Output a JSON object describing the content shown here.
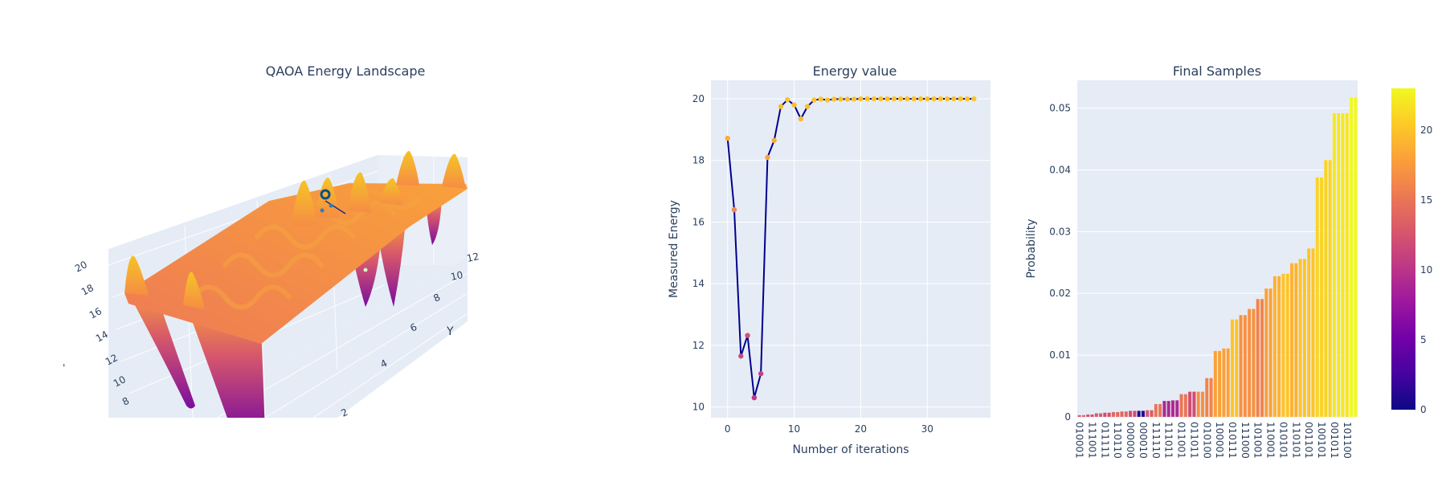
{
  "colors": {
    "plot_bg": "#e5ecf6",
    "grid": "#ffffff",
    "line": "#00008b",
    "text": "#2a3f5f",
    "colorscale": [
      "#0d0887",
      "#46039f",
      "#7201a8",
      "#9c179e",
      "#bd3786",
      "#d8576b",
      "#ed7953",
      "#fb9f3a",
      "#fdca26",
      "#f0f921"
    ]
  },
  "chart_data": [
    {
      "type": "surface",
      "title": "QAOA Energy Landscape",
      "xlabel": "",
      "ylabel": "Y",
      "zlabel": "Z",
      "z_ticks": [
        "8",
        "10",
        "12",
        "14",
        "16",
        "18",
        "20"
      ],
      "y_ticks": [
        "2",
        "4",
        "6",
        "8",
        "10",
        "12"
      ],
      "zlim": [
        6,
        22
      ],
      "colorscale": "plasma",
      "description": "Oscillatory energy surface, mostly flat around 17-19 with sharp peaks up to ~21 and deep wells down to ~6; optimization trajectory marker in blue"
    },
    {
      "type": "line",
      "title": "Energy value",
      "xlabel": "Number of iterations",
      "ylabel": "Measured Energy",
      "x_ticks": [
        0,
        10,
        20,
        30
      ],
      "y_ticks": [
        10,
        12,
        14,
        16,
        18,
        20
      ],
      "xlim": [
        -2.5,
        39.5
      ],
      "ylim": [
        9.65,
        20.6
      ],
      "grid": true,
      "marker_colorscale": "plasma",
      "x": [
        0,
        1,
        2,
        3,
        4,
        5,
        6,
        7,
        8,
        9,
        10,
        11,
        12,
        13,
        14,
        15,
        16,
        17,
        18,
        19,
        20,
        21,
        22,
        23,
        24,
        25,
        26,
        27,
        28,
        29,
        30,
        31,
        32,
        33,
        34,
        35,
        36,
        37
      ],
      "values": [
        18.72,
        16.4,
        11.65,
        12.32,
        10.3,
        11.08,
        18.1,
        18.65,
        19.75,
        19.97,
        19.8,
        19.35,
        19.75,
        19.96,
        19.99,
        19.96,
        19.99,
        19.99,
        19.99,
        19.99,
        20.0,
        20.0,
        20.0,
        20.0,
        20.0,
        20.0,
        20.0,
        20.0,
        20.0,
        20.0,
        20.0,
        20.0,
        20.0,
        20.0,
        20.0,
        20.0,
        20.0,
        20.0
      ]
    },
    {
      "type": "bar",
      "title": "Final Samples",
      "xlabel": "",
      "ylabel": "Probability",
      "y_ticks": [
        "0",
        "0.01",
        "0.02",
        "0.03",
        "0.04",
        "0.05"
      ],
      "ylim": [
        0,
        0.0545
      ],
      "grid": true,
      "colorbar": {
        "ticks": [
          "0",
          "5",
          "10",
          "15",
          "20"
        ],
        "range": [
          0,
          23
        ]
      },
      "tick_labels": [
        "010001",
        "111001",
        "011111",
        "110110",
        "000000",
        "000010",
        "111110",
        "111011",
        "011001",
        "011011",
        "010100",
        "100001",
        "010111",
        "111000",
        "101001",
        "110001",
        "010101",
        "110101",
        "001101",
        "100101",
        "001011",
        "101100"
      ],
      "values": [
        0.0003,
        0.0003,
        0.0004,
        0.0004,
        0.0006,
        0.0006,
        0.0007,
        0.0007,
        0.0008,
        0.0008,
        0.0009,
        0.0009,
        0.001,
        0.001,
        0.001,
        0.001,
        0.0011,
        0.0011,
        0.0021,
        0.0021,
        0.0026,
        0.0026,
        0.0027,
        0.0027,
        0.0037,
        0.0037,
        0.0041,
        0.0041,
        0.0041,
        0.0041,
        0.0063,
        0.0063,
        0.0107,
        0.0107,
        0.0111,
        0.0111,
        0.0158,
        0.0158,
        0.0165,
        0.0165,
        0.0175,
        0.0175,
        0.0191,
        0.0191,
        0.0208,
        0.0208,
        0.0228,
        0.0228,
        0.0232,
        0.0232,
        0.0249,
        0.0249,
        0.0256,
        0.0256,
        0.0273,
        0.0273,
        0.0388,
        0.0388,
        0.0416,
        0.0416,
        0.0492,
        0.0492,
        0.0492,
        0.0492,
        0.0518,
        0.0518
      ],
      "color_values": [
        13,
        13,
        12,
        12,
        13,
        13,
        12,
        12,
        14,
        14,
        14,
        14,
        12,
        12,
        1,
        1,
        13,
        13,
        15,
        15,
        9,
        9,
        9,
        9,
        15,
        15,
        12,
        12,
        17,
        17,
        16,
        16,
        18,
        18,
        18,
        18,
        20,
        20,
        17,
        17,
        17,
        17,
        16,
        16,
        18,
        18,
        19,
        19,
        20,
        20,
        19,
        19,
        20,
        20,
        20,
        20,
        21,
        21,
        21,
        21,
        22,
        22,
        22,
        22,
        23,
        23
      ]
    }
  ]
}
